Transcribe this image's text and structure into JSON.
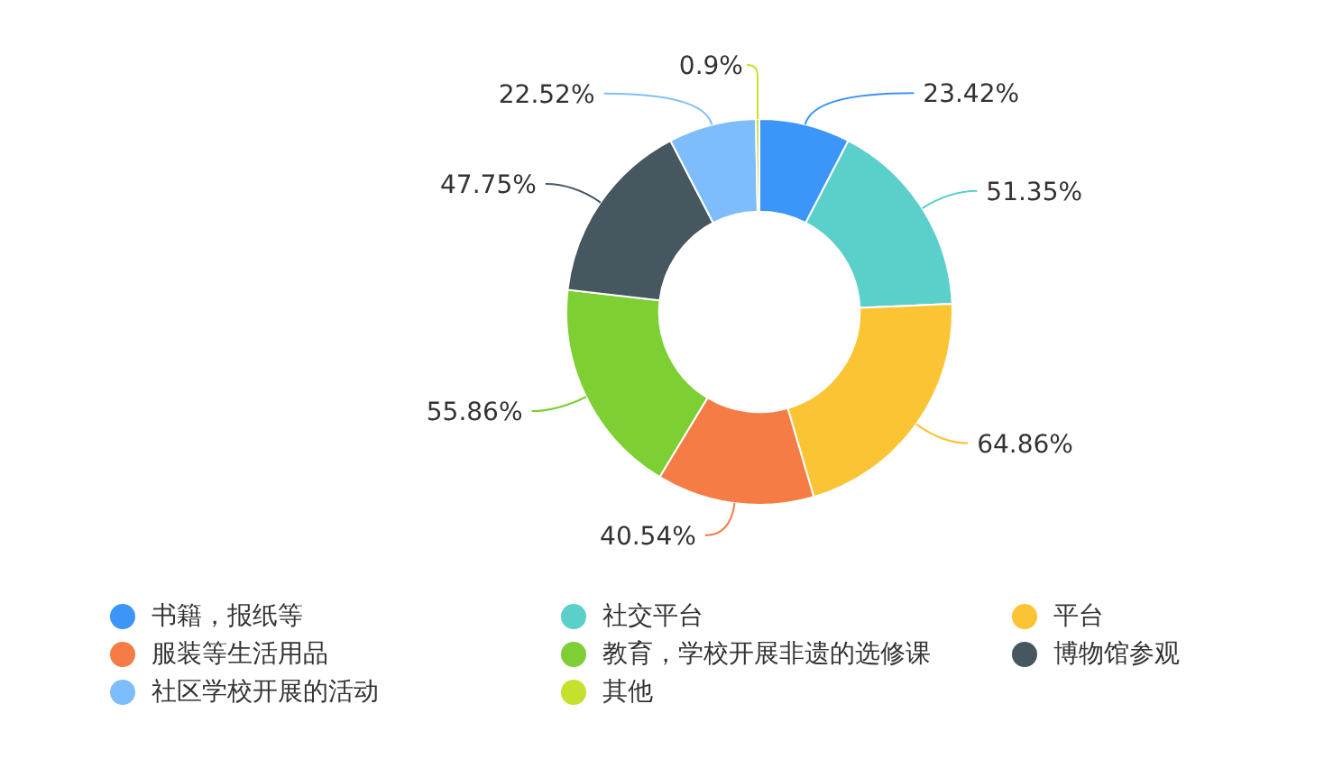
{
  "chart_data": {
    "type": "donut",
    "categories": [
      "书籍，报纸等",
      "社交平台",
      "平台",
      "服装等生活用品",
      "教育，学校开展非遗的选修课",
      "博物馆参观",
      "社区学校开展的活动",
      "其他"
    ],
    "values": [
      23.42,
      51.35,
      64.86,
      40.54,
      55.86,
      47.75,
      22.52,
      0.9
    ],
    "colors": [
      "#3c95f8",
      "#5bcfca",
      "#fbc434",
      "#f67c45",
      "#7ecf34",
      "#465760",
      "#7dbdfc",
      "#c5e02d"
    ],
    "value_labels": [
      "23.42%",
      "51.35%",
      "64.86%",
      "40.54%",
      "55.86%",
      "47.75%",
      "22.52%",
      "0.9%"
    ],
    "legend": "bottom"
  }
}
